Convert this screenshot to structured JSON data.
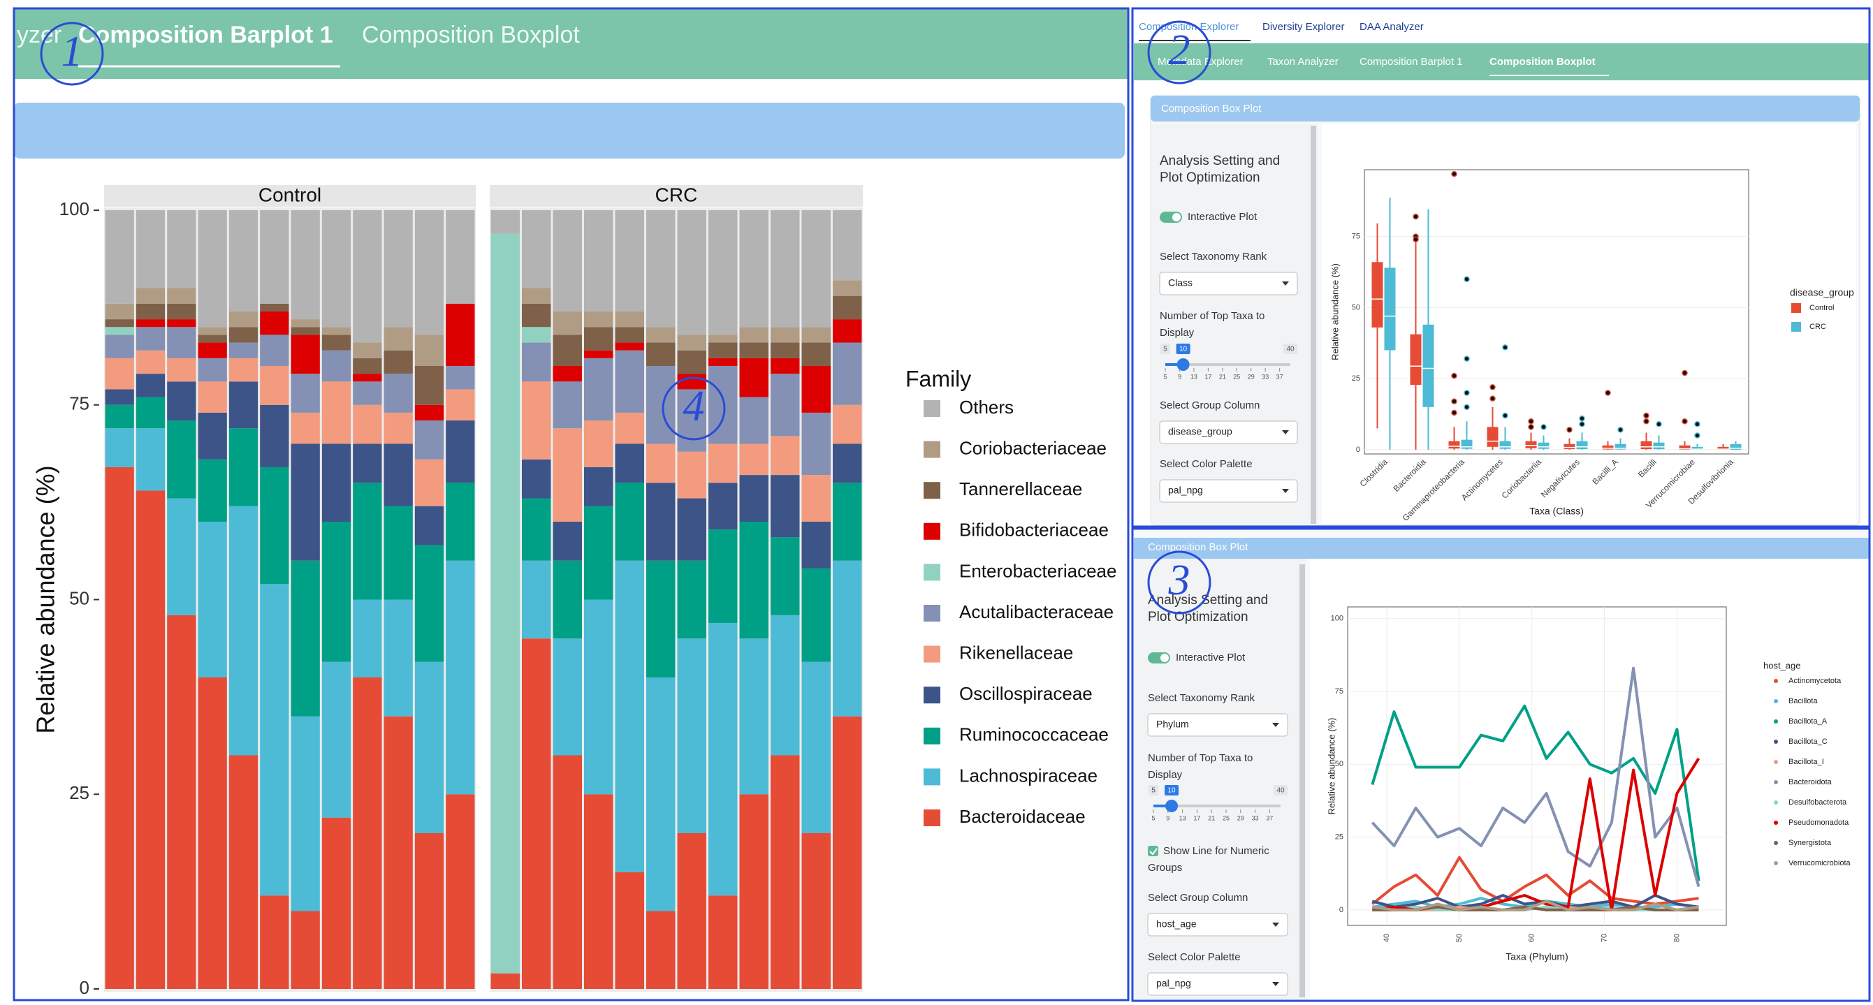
{
  "panel_1": {
    "tabs": [
      "yzer",
      "Composition Barplot 1",
      "Composition Boxplot"
    ]
  },
  "panel_2": {
    "top_tabs": [
      "Composition Explorer",
      "Diversity Explorer",
      "DAA Analyzer"
    ],
    "sub_tabs": [
      "Metadata Explorer",
      "Taxon Analyzer",
      "Composition Barplot 1",
      "Composition Boxplot"
    ],
    "card_title": "Composition Box Plot",
    "sidebar": {
      "heading": [
        "Analysis Setting and",
        "Plot Optimization"
      ],
      "toggle_label": "Interactive Plot",
      "rank_label": "Select Taxonomy Rank",
      "rank_value": "Class",
      "top_n_label": [
        "Number of Top Taxa to",
        "Display"
      ],
      "slider": {
        "min": 5,
        "max": 40,
        "value": 10,
        "ticks": [
          5,
          9,
          13,
          17,
          21,
          25,
          29,
          33,
          37
        ]
      },
      "group_label": "Select Group Column",
      "group_value": "disease_group",
      "palette_label": "Select Color Palette",
      "palette_value": "pal_npg"
    }
  },
  "panel_3": {
    "card_title": "Composition Box Plot",
    "sidebar": {
      "heading": [
        "Analysis Setting and",
        "Plot Optimization"
      ],
      "toggle_label": "Interactive Plot",
      "rank_label": "Select Taxonomy Rank",
      "rank_value": "Phylum",
      "top_n_label": [
        "Number of Top Taxa to",
        "Display"
      ],
      "slider": {
        "min": 5,
        "max": 40,
        "value": 10,
        "ticks": [
          5,
          9,
          13,
          17,
          21,
          25,
          29,
          33,
          37
        ]
      },
      "checkbox_label": [
        "Show Line for Numeric",
        "Groups"
      ],
      "group_label": "Select Group Column",
      "group_value": "host_age",
      "palette_label": "Select Color Palette",
      "palette_value": "pal_npg"
    }
  },
  "markers": [
    "1",
    "2",
    "3",
    "4"
  ],
  "chart_data": [
    {
      "type": "stacked-bar",
      "y_label": "Relative abundance (%)",
      "legend_title": "Family",
      "ylim": [
        0,
        100
      ],
      "yticks": [
        0,
        25,
        50,
        75,
        100
      ],
      "facets": [
        {
          "title": "Control",
          "categories": [
            null,
            null,
            null,
            null,
            null,
            null,
            null,
            null,
            null,
            null,
            null,
            null
          ]
        },
        {
          "title": "CRC",
          "categories": [
            null,
            null,
            null,
            null,
            null,
            null,
            null,
            null,
            null,
            null,
            null,
            null
          ]
        }
      ],
      "series": [
        {
          "name": "Others",
          "color": "#b3b3b3",
          "values": [
            [
              12,
              10,
              10,
              15,
              13,
              12,
              14,
              15,
              17,
              15,
              16,
              12
            ],
            [
              3,
              10,
              13,
              13,
              13,
              15,
              16,
              16,
              15,
              15,
              15,
              9
            ]
          ]
        },
        {
          "name": "Coriobacteriaceae",
          "color": "#b09c85",
          "values": [
            [
              2,
              2,
              2,
              1,
              2,
              0,
              1,
              1,
              2,
              3,
              4,
              0
            ],
            [
              0,
              2,
              3,
              2,
              2,
              2,
              2,
              1,
              2,
              2,
              2,
              2
            ]
          ]
        },
        {
          "name": "Tannerellaceae",
          "color": "#7e6148",
          "values": [
            [
              1,
              2,
              2,
              1,
              2,
              1,
              1,
              2,
              2,
              3,
              5,
              0
            ],
            [
              0,
              3,
              4,
              3,
              2,
              3,
              3,
              2,
              2,
              2,
              3,
              3
            ]
          ]
        },
        {
          "name": "Bifidobacteriaceae",
          "color": "#dc0000",
          "values": [
            [
              0,
              1,
              1,
              2,
              0,
              3,
              5,
              0,
              1,
              0,
              2,
              8
            ],
            [
              0,
              0,
              2,
              1,
              1,
              0,
              2,
              1,
              5,
              2,
              6,
              3
            ]
          ]
        },
        {
          "name": "Enterobacteriaceae",
          "color": "#91d1c2",
          "values": [
            [
              1,
              0,
              0,
              0,
              0,
              0,
              0,
              0,
              0,
              0,
              0,
              0
            ],
            [
              95,
              2,
              0,
              0,
              0,
              0,
              0,
              0,
              0,
              0,
              0,
              0
            ]
          ]
        },
        {
          "name": "Acutalibacteraceae",
          "color": "#8491b4",
          "values": [
            [
              3,
              3,
              4,
              3,
              2,
              4,
              5,
              4,
              3,
              5,
              5,
              3
            ],
            [
              0,
              5,
              6,
              8,
              8,
              10,
              8,
              10,
              6,
              8,
              8,
              8
            ]
          ]
        },
        {
          "name": "Rikenellaceae",
          "color": "#f39b7f",
          "values": [
            [
              4,
              3,
              3,
              4,
              3,
              5,
              4,
              8,
              5,
              4,
              6,
              4
            ],
            [
              0,
              10,
              12,
              6,
              4,
              5,
              6,
              5,
              4,
              5,
              6,
              5
            ]
          ]
        },
        {
          "name": "Oscillospiraceae",
          "color": "#3c5488",
          "values": [
            [
              2,
              3,
              5,
              6,
              6,
              8,
              15,
              10,
              5,
              8,
              5,
              8
            ],
            [
              0,
              5,
              5,
              5,
              5,
              10,
              8,
              6,
              6,
              8,
              6,
              5
            ]
          ]
        },
        {
          "name": "Ruminococcaceae",
          "color": "#00a087",
          "values": [
            [
              3,
              4,
              10,
              8,
              10,
              15,
              20,
              18,
              15,
              12,
              15,
              10
            ],
            [
              0,
              8,
              10,
              12,
              10,
              15,
              10,
              12,
              15,
              10,
              12,
              10
            ]
          ]
        },
        {
          "name": "Lachnospiraceae",
          "color": "#4dbbd5",
          "values": [
            [
              5,
              8,
              15,
              20,
              32,
              40,
              25,
              20,
              10,
              15,
              22,
              30
            ],
            [
              0,
              10,
              15,
              25,
              40,
              30,
              25,
              35,
              20,
              18,
              22,
              20
            ]
          ]
        },
        {
          "name": "Bacteroidaceae",
          "color": "#e64b35",
          "values": [
            [
              67,
              64,
              48,
              40,
              30,
              12,
              10,
              22,
              40,
              35,
              20,
              25
            ],
            [
              2,
              45,
              30,
              25,
              15,
              10,
              20,
              12,
              25,
              30,
              20,
              35
            ]
          ]
        }
      ]
    },
    {
      "type": "box",
      "x_label": "Taxa (Class)",
      "y_label": "Relative abundance (%)",
      "legend_title": "disease_group",
      "ylim": [
        -1.5,
        98.5
      ],
      "yticks": [
        0,
        25,
        50,
        75
      ],
      "categories": [
        "Clostridia",
        "Bacteroidia",
        "Gammaproteobacteria",
        "Actinomycetes",
        "Coriobacteriia",
        "Negativicutes",
        "Bacilli_A",
        "Bacilli",
        "Verrucomicrobiae",
        "Desulfovibrionia"
      ],
      "series": [
        {
          "name": "Control",
          "color": "#e64b35",
          "whisker_low": [
            7.5,
            0,
            0,
            0,
            0,
            0,
            0,
            0,
            0,
            0
          ],
          "q1": [
            43,
            22.8,
            0.4,
            1,
            0.5,
            0.2,
            0.1,
            0.2,
            0,
            0
          ],
          "median": [
            53,
            29.4,
            1.2,
            3,
            1.5,
            0.8,
            0.5,
            1,
            0.3,
            0.2
          ],
          "q3": [
            66,
            40.6,
            3,
            8,
            3,
            2,
            1.5,
            3,
            1.5,
            1
          ],
          "whisker_high": [
            79.6,
            73,
            8,
            15,
            6,
            4,
            3,
            6,
            3,
            2
          ],
          "outliers": [
            [],
            [
              82,
              75,
              74
            ],
            [
              97,
              26,
              17,
              13
            ],
            [
              22,
              18
            ],
            [
              10,
              8
            ],
            [
              7
            ],
            [
              20
            ],
            [
              12,
              10
            ],
            [
              27,
              10
            ],
            []
          ]
        },
        {
          "name": "CRC",
          "color": "#4dbbd5",
          "whisker_low": [
            0,
            0,
            0,
            0,
            0,
            0,
            0,
            0,
            0,
            0
          ],
          "q1": [
            35,
            15,
            0.3,
            0.3,
            0.3,
            0.2,
            0.1,
            0.2,
            0,
            0
          ],
          "median": [
            47,
            28.6,
            1,
            1,
            1,
            1,
            0.5,
            1,
            0.2,
            0.5
          ],
          "q3": [
            64,
            44,
            3.5,
            3,
            2.5,
            3,
            2,
            2.5,
            1,
            2
          ],
          "whisker_high": [
            88.7,
            84.6,
            10,
            8,
            5,
            6,
            4,
            5,
            2,
            3
          ],
          "outliers": [
            [],
            [],
            [
              60,
              32,
              20,
              15
            ],
            [
              36,
              12
            ],
            [
              8
            ],
            [
              11,
              9
            ],
            [
              7
            ],
            [
              9
            ],
            [
              9,
              5
            ],
            []
          ]
        }
      ]
    },
    {
      "type": "line",
      "x_label": "Taxa (Phylum)",
      "y_label": "Relative abundance (%)",
      "legend_title": "host_age",
      "xlim": [
        34.6,
        86.8
      ],
      "xticks": [
        40,
        50,
        60,
        70,
        80
      ],
      "ylim": [
        -5.3,
        104
      ],
      "yticks": [
        0,
        25,
        50,
        75,
        100
      ],
      "x": [
        38,
        41,
        44,
        47,
        50,
        53,
        56,
        59,
        62,
        65,
        68,
        71,
        74,
        77,
        80,
        83
      ],
      "series": [
        {
          "name": "Actinomycetota",
          "color": "#e64b35",
          "values": [
            2,
            8,
            12,
            5,
            18,
            7,
            3,
            8,
            12,
            5,
            10,
            4,
            3,
            2,
            3,
            4
          ]
        },
        {
          "name": "Bacillota",
          "color": "#4dbbd5",
          "values": [
            1,
            2,
            3,
            1,
            2,
            4,
            2,
            1,
            3,
            2,
            1,
            2,
            1,
            1,
            2,
            1
          ]
        },
        {
          "name": "Bacillota_A",
          "color": "#00a087",
          "values": [
            43,
            68,
            49,
            49,
            49,
            60,
            58,
            70,
            52,
            61,
            50,
            47,
            52,
            40,
            62,
            10
          ]
        },
        {
          "name": "Bacillota_C",
          "color": "#3c5488",
          "values": [
            3,
            1,
            2,
            4,
            1,
            2,
            5,
            2,
            3,
            1,
            2,
            3,
            1,
            5,
            2,
            1
          ]
        },
        {
          "name": "Bacillota_I",
          "color": "#f39b7f",
          "values": [
            0,
            1,
            0,
            0,
            1,
            0,
            0,
            1,
            0,
            1,
            0,
            0,
            1,
            0,
            0,
            1
          ]
        },
        {
          "name": "Bacteroidota",
          "color": "#8491b4",
          "values": [
            30,
            22,
            35,
            25,
            28,
            22,
            35,
            30,
            40,
            20,
            15,
            30,
            83,
            25,
            35,
            8
          ]
        },
        {
          "name": "Desulfobacterota",
          "color": "#91d1c2",
          "values": [
            0,
            0,
            1,
            0,
            0,
            1,
            0,
            0,
            1,
            0,
            0,
            1,
            0,
            0,
            0,
            0
          ]
        },
        {
          "name": "Pseudomonadota",
          "color": "#dc0000",
          "values": [
            0,
            1,
            0,
            2,
            0,
            1,
            3,
            5,
            2,
            1,
            45,
            0,
            48,
            5,
            40,
            52
          ]
        },
        {
          "name": "Synergistota",
          "color": "#7e6148",
          "values": [
            0,
            0,
            0,
            1,
            0,
            0,
            0,
            1,
            0,
            0,
            0,
            0,
            1,
            0,
            0,
            0
          ]
        },
        {
          "name": "Verrucomicrobiota",
          "color": "#b09c85",
          "values": [
            1,
            0,
            0,
            2,
            0,
            1,
            0,
            0,
            3,
            0,
            1,
            0,
            0,
            2,
            0,
            1
          ]
        }
      ]
    }
  ]
}
